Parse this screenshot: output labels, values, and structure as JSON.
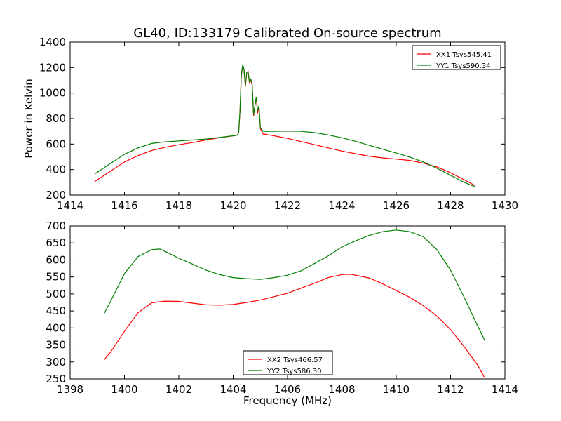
{
  "chart_data": [
    {
      "type": "line",
      "title": "GL40, ID:133179 Calibrated On-source spectrum",
      "xlabel": "",
      "ylabel": "Power in Kelvin",
      "xlim": [
        1414,
        1430
      ],
      "ylim": [
        200,
        1400
      ],
      "xticks": [
        "1414",
        "1416",
        "1418",
        "1420",
        "1422",
        "1424",
        "1426",
        "1428",
        "1430"
      ],
      "yticks": [
        "200",
        "400",
        "600",
        "800",
        "1000",
        "1200",
        "1400"
      ],
      "legend_position": "upper-right",
      "series": [
        {
          "name": "XX1 Tsys545.41",
          "color": "#ff0000",
          "points": [
            [
              1414.9,
              305
            ],
            [
              1415.5,
              390
            ],
            [
              1416.0,
              460
            ],
            [
              1416.5,
              510
            ],
            [
              1417.0,
              550
            ],
            [
              1417.5,
              575
            ],
            [
              1418.0,
              595
            ],
            [
              1418.5,
              612
            ],
            [
              1419.0,
              632
            ],
            [
              1419.5,
              650
            ],
            [
              1420.0,
              665
            ],
            [
              1420.1,
              668
            ],
            [
              1420.15,
              672
            ],
            [
              1420.2,
              690
            ],
            [
              1420.25,
              850
            ],
            [
              1420.3,
              1130
            ],
            [
              1420.35,
              1220
            ],
            [
              1420.4,
              1180
            ],
            [
              1420.45,
              1050
            ],
            [
              1420.5,
              1160
            ],
            [
              1420.55,
              1170
            ],
            [
              1420.6,
              1080
            ],
            [
              1420.65,
              1100
            ],
            [
              1420.7,
              1060
            ],
            [
              1420.75,
              820
            ],
            [
              1420.8,
              900
            ],
            [
              1420.85,
              960
            ],
            [
              1420.9,
              840
            ],
            [
              1420.95,
              900
            ],
            [
              1421.0,
              720
            ],
            [
              1421.1,
              680
            ],
            [
              1421.5,
              665
            ],
            [
              1422.0,
              645
            ],
            [
              1422.5,
              620
            ],
            [
              1423.0,
              595
            ],
            [
              1423.5,
              570
            ],
            [
              1424.0,
              545
            ],
            [
              1424.5,
              525
            ],
            [
              1425.0,
              505
            ],
            [
              1425.5,
              492
            ],
            [
              1426.0,
              482
            ],
            [
              1426.5,
              472
            ],
            [
              1427.0,
              450
            ],
            [
              1427.5,
              420
            ],
            [
              1428.0,
              375
            ],
            [
              1428.5,
              320
            ],
            [
              1428.9,
              275
            ]
          ]
        },
        {
          "name": "YY1 Tsys590.34",
          "color": "#008000",
          "points": [
            [
              1414.9,
              365
            ],
            [
              1415.5,
              450
            ],
            [
              1416.0,
              520
            ],
            [
              1416.5,
              570
            ],
            [
              1417.0,
              605
            ],
            [
              1417.5,
              618
            ],
            [
              1418.0,
              625
            ],
            [
              1418.5,
              632
            ],
            [
              1419.0,
              640
            ],
            [
              1419.5,
              652
            ],
            [
              1420.0,
              665
            ],
            [
              1420.1,
              668
            ],
            [
              1420.15,
              672
            ],
            [
              1420.2,
              690
            ],
            [
              1420.25,
              860
            ],
            [
              1420.3,
              1140
            ],
            [
              1420.35,
              1225
            ],
            [
              1420.4,
              1185
            ],
            [
              1420.45,
              1060
            ],
            [
              1420.5,
              1165
            ],
            [
              1420.55,
              1165
            ],
            [
              1420.6,
              1090
            ],
            [
              1420.65,
              1110
            ],
            [
              1420.7,
              1070
            ],
            [
              1420.75,
              830
            ],
            [
              1420.8,
              900
            ],
            [
              1420.85,
              970
            ],
            [
              1420.9,
              860
            ],
            [
              1420.95,
              900
            ],
            [
              1421.0,
              730
            ],
            [
              1421.1,
              700
            ],
            [
              1421.5,
              700
            ],
            [
              1422.0,
              702
            ],
            [
              1422.5,
              700
            ],
            [
              1423.0,
              690
            ],
            [
              1423.5,
              672
            ],
            [
              1424.0,
              650
            ],
            [
              1424.5,
              622
            ],
            [
              1425.0,
              590
            ],
            [
              1425.5,
              560
            ],
            [
              1426.0,
              530
            ],
            [
              1426.5,
              498
            ],
            [
              1427.0,
              460
            ],
            [
              1427.5,
              410
            ],
            [
              1428.0,
              355
            ],
            [
              1428.5,
              300
            ],
            [
              1428.9,
              265
            ]
          ]
        }
      ]
    },
    {
      "type": "line",
      "title": "",
      "xlabel": "Frequency (MHz)",
      "ylabel": "",
      "xlim": [
        1398,
        1414
      ],
      "ylim": [
        250,
        700
      ],
      "xticks": [
        "1398",
        "1400",
        "1402",
        "1404",
        "1406",
        "1408",
        "1410",
        "1412",
        "1414"
      ],
      "yticks": [
        "250",
        "300",
        "350",
        "400",
        "450",
        "500",
        "550",
        "600",
        "650",
        "700"
      ],
      "legend_position": "lower-center",
      "series": [
        {
          "name": "XX2 Tsys466.57",
          "color": "#ff0000",
          "points": [
            [
              1399.25,
              306
            ],
            [
              1399.5,
              330
            ],
            [
              1400.0,
              390
            ],
            [
              1400.5,
              445
            ],
            [
              1401.0,
              474
            ],
            [
              1401.5,
              479
            ],
            [
              1402.0,
              478
            ],
            [
              1402.5,
              473
            ],
            [
              1403.0,
              468
            ],
            [
              1403.5,
              467
            ],
            [
              1404.0,
              469
            ],
            [
              1404.5,
              475
            ],
            [
              1405.0,
              482
            ],
            [
              1405.5,
              492
            ],
            [
              1406.0,
              502
            ],
            [
              1406.5,
              517
            ],
            [
              1407.0,
              532
            ],
            [
              1407.5,
              548
            ],
            [
              1408.0,
              557
            ],
            [
              1408.3,
              558
            ],
            [
              1408.5,
              555
            ],
            [
              1409.0,
              547
            ],
            [
              1409.5,
              530
            ],
            [
              1410.0,
              510
            ],
            [
              1410.5,
              490
            ],
            [
              1411.0,
              465
            ],
            [
              1411.5,
              435
            ],
            [
              1412.0,
              395
            ],
            [
              1412.5,
              345
            ],
            [
              1413.0,
              290
            ],
            [
              1413.25,
              254
            ]
          ]
        },
        {
          "name": "YY2 Tsys586.30",
          "color": "#008000",
          "points": [
            [
              1399.25,
              442
            ],
            [
              1399.5,
              480
            ],
            [
              1400.0,
              560
            ],
            [
              1400.5,
              610
            ],
            [
              1401.0,
              630
            ],
            [
              1401.3,
              632
            ],
            [
              1401.5,
              625
            ],
            [
              1402.0,
              605
            ],
            [
              1402.5,
              588
            ],
            [
              1403.0,
              570
            ],
            [
              1403.5,
              557
            ],
            [
              1404.0,
              548
            ],
            [
              1404.5,
              545
            ],
            [
              1405.0,
              543
            ],
            [
              1405.5,
              548
            ],
            [
              1406.0,
              555
            ],
            [
              1406.5,
              568
            ],
            [
              1407.0,
              590
            ],
            [
              1407.5,
              612
            ],
            [
              1408.0,
              638
            ],
            [
              1408.5,
              656
            ],
            [
              1409.0,
              672
            ],
            [
              1409.5,
              683
            ],
            [
              1410.0,
              688
            ],
            [
              1410.5,
              683
            ],
            [
              1411.0,
              668
            ],
            [
              1411.5,
              630
            ],
            [
              1412.0,
              570
            ],
            [
              1412.5,
              490
            ],
            [
              1413.0,
              405
            ],
            [
              1413.25,
              365
            ]
          ]
        }
      ]
    }
  ]
}
